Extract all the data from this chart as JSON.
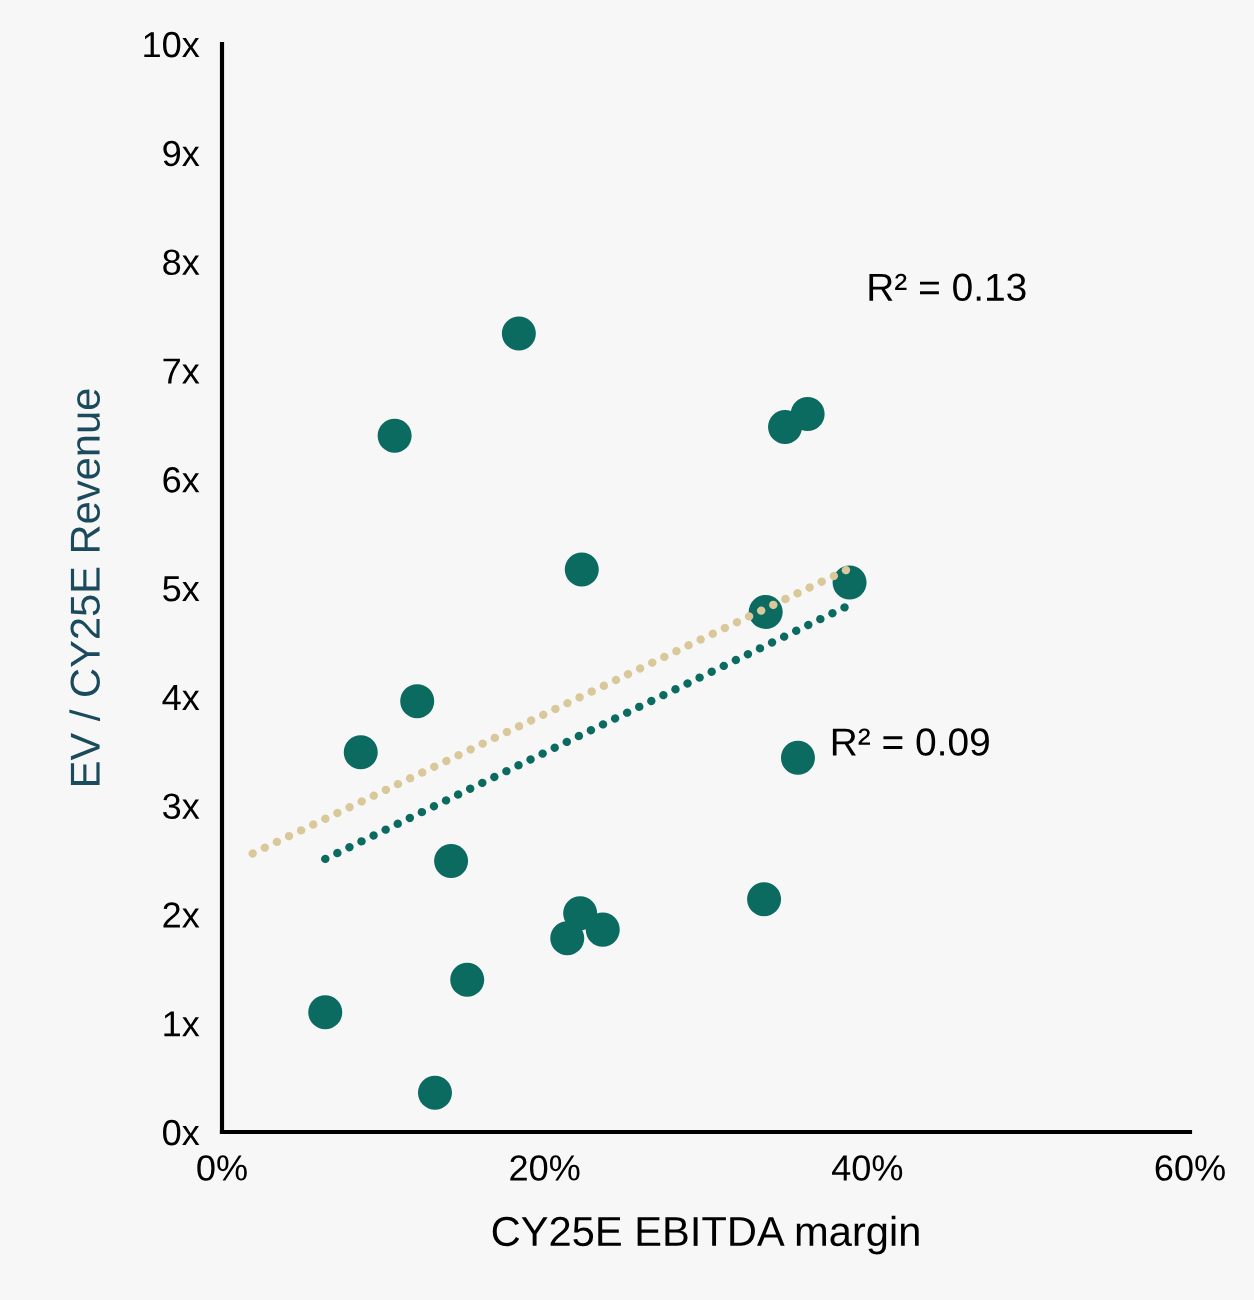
{
  "chart_data": {
    "type": "scatter",
    "xlabel": "CY25E EBITDA margin",
    "ylabel": "EV / CY25E Revenue",
    "xlim": [
      0,
      60
    ],
    "xticks": [
      {
        "value": 0,
        "label": "0%"
      },
      {
        "value": 20,
        "label": "20%"
      },
      {
        "value": 40,
        "label": "40%"
      },
      {
        "value": 60,
        "label": "60%"
      }
    ],
    "ylim": [
      0,
      10
    ],
    "yticks": [
      {
        "value": 0,
        "label": "0x"
      },
      {
        "value": 1,
        "label": "1x"
      },
      {
        "value": 2,
        "label": "2x"
      },
      {
        "value": 3,
        "label": "3x"
      },
      {
        "value": 4,
        "label": "4x"
      },
      {
        "value": 5,
        "label": "5x"
      },
      {
        "value": 6,
        "label": "6x"
      },
      {
        "value": 7,
        "label": "7x"
      },
      {
        "value": 8,
        "label": "8x"
      },
      {
        "value": 9,
        "label": "9x"
      },
      {
        "value": 10,
        "label": "10x"
      }
    ],
    "grid": false,
    "series": [
      {
        "type": "line",
        "color": "#d9c89a",
        "line_style": "dotted",
        "marker": "none",
        "x": [
          1.9,
          38.9
        ],
        "values": [
          2.56,
          5.18
        ]
      },
      {
        "type": "line",
        "color": "#0b6b60",
        "line_style": "dotted",
        "marker": "none",
        "x": [
          6.4,
          38.7
        ],
        "values": [
          2.51,
          4.83
        ]
      },
      {
        "color": "#0b6b60",
        "marker": "circle",
        "x": [
          18.4,
          10.7,
          22.3,
          12.1,
          8.6,
          14.2,
          22.2,
          21.4,
          23.6,
          15.2,
          6.4,
          13.2,
          34.9,
          36.3,
          38.9,
          33.7,
          35.7,
          33.6
        ],
        "values": [
          7.34,
          6.4,
          5.17,
          3.96,
          3.49,
          2.49,
          2.01,
          1.78,
          1.86,
          1.4,
          1.1,
          0.36,
          6.48,
          6.6,
          5.05,
          4.78,
          3.44,
          2.14
        ]
      }
    ],
    "annotations": [
      "R² = 0.13",
      "R² = 0.09"
    ]
  }
}
